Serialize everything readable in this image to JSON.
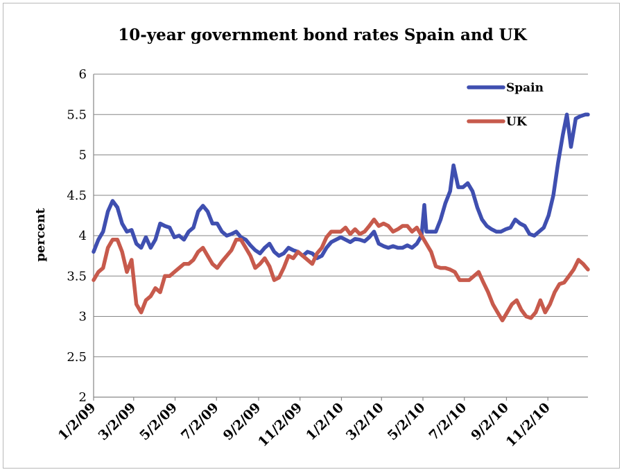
{
  "chart_data": {
    "type": "line",
    "title": "10-year government bond rates Spain and UK",
    "ylabel": "percent",
    "xlabel": "",
    "ylim": [
      2,
      6
    ],
    "yticks": [
      "2",
      "2.5",
      "3",
      "3.5",
      "4",
      "4.5",
      "5",
      "5.5",
      "6"
    ],
    "xticks": [
      "1/2/09",
      "3/2/09",
      "5/2/09",
      "7/2/09",
      "9/2/09",
      "11/2/09",
      "1/2/10",
      "3/2/10",
      "5/2/10",
      "7/2/10",
      "9/2/10",
      "11/2/10"
    ],
    "x_range": [
      "2009-01-02",
      "2010-12-31"
    ],
    "grid": "horizontal",
    "legend_position": "top-right",
    "series": [
      {
        "name": "Spain",
        "color": "#3f4fb0",
        "points": [
          [
            "2009-01-02",
            3.8
          ],
          [
            "2009-01-09",
            3.95
          ],
          [
            "2009-01-16",
            4.05
          ],
          [
            "2009-01-23",
            4.3
          ],
          [
            "2009-01-30",
            4.43
          ],
          [
            "2009-02-06",
            4.35
          ],
          [
            "2009-02-13",
            4.15
          ],
          [
            "2009-02-20",
            4.05
          ],
          [
            "2009-02-27",
            4.07
          ],
          [
            "2009-03-06",
            3.9
          ],
          [
            "2009-03-13",
            3.85
          ],
          [
            "2009-03-20",
            3.98
          ],
          [
            "2009-03-27",
            3.85
          ],
          [
            "2009-04-03",
            3.95
          ],
          [
            "2009-04-10",
            4.15
          ],
          [
            "2009-04-17",
            4.12
          ],
          [
            "2009-04-24",
            4.1
          ],
          [
            "2009-05-01",
            3.98
          ],
          [
            "2009-05-08",
            4.0
          ],
          [
            "2009-05-15",
            3.95
          ],
          [
            "2009-05-22",
            4.05
          ],
          [
            "2009-05-29",
            4.1
          ],
          [
            "2009-06-05",
            4.3
          ],
          [
            "2009-06-12",
            4.37
          ],
          [
            "2009-06-19",
            4.3
          ],
          [
            "2009-06-26",
            4.15
          ],
          [
            "2009-07-03",
            4.15
          ],
          [
            "2009-07-10",
            4.05
          ],
          [
            "2009-07-17",
            4.0
          ],
          [
            "2009-07-24",
            4.02
          ],
          [
            "2009-07-31",
            4.05
          ],
          [
            "2009-08-07",
            3.98
          ],
          [
            "2009-08-14",
            3.95
          ],
          [
            "2009-08-21",
            3.88
          ],
          [
            "2009-08-28",
            3.82
          ],
          [
            "2009-09-04",
            3.78
          ],
          [
            "2009-09-11",
            3.85
          ],
          [
            "2009-09-18",
            3.9
          ],
          [
            "2009-09-25",
            3.8
          ],
          [
            "2009-10-02",
            3.75
          ],
          [
            "2009-10-09",
            3.78
          ],
          [
            "2009-10-16",
            3.85
          ],
          [
            "2009-10-23",
            3.82
          ],
          [
            "2009-10-30",
            3.8
          ],
          [
            "2009-11-06",
            3.75
          ],
          [
            "2009-11-13",
            3.8
          ],
          [
            "2009-11-20",
            3.78
          ],
          [
            "2009-11-27",
            3.72
          ],
          [
            "2009-12-04",
            3.75
          ],
          [
            "2009-12-11",
            3.85
          ],
          [
            "2009-12-18",
            3.92
          ],
          [
            "2009-12-25",
            3.95
          ],
          [
            "2010-01-01",
            3.98
          ],
          [
            "2010-01-08",
            3.95
          ],
          [
            "2010-01-15",
            3.92
          ],
          [
            "2010-01-22",
            3.96
          ],
          [
            "2010-01-29",
            3.95
          ],
          [
            "2010-02-05",
            3.93
          ],
          [
            "2010-02-12",
            3.98
          ],
          [
            "2010-02-19",
            4.05
          ],
          [
            "2010-02-26",
            3.9
          ],
          [
            "2010-03-05",
            3.87
          ],
          [
            "2010-03-12",
            3.85
          ],
          [
            "2010-03-19",
            3.87
          ],
          [
            "2010-03-26",
            3.85
          ],
          [
            "2010-04-02",
            3.85
          ],
          [
            "2010-04-09",
            3.88
          ],
          [
            "2010-04-16",
            3.85
          ],
          [
            "2010-04-23",
            3.9
          ],
          [
            "2010-04-30",
            4.0
          ],
          [
            "2010-05-04",
            4.38
          ],
          [
            "2010-05-07",
            4.05
          ],
          [
            "2010-05-14",
            4.05
          ],
          [
            "2010-05-21",
            4.05
          ],
          [
            "2010-05-28",
            4.2
          ],
          [
            "2010-06-04",
            4.4
          ],
          [
            "2010-06-11",
            4.55
          ],
          [
            "2010-06-16",
            4.87
          ],
          [
            "2010-06-23",
            4.6
          ],
          [
            "2010-06-30",
            4.6
          ],
          [
            "2010-07-07",
            4.65
          ],
          [
            "2010-07-14",
            4.55
          ],
          [
            "2010-07-21",
            4.35
          ],
          [
            "2010-07-28",
            4.2
          ],
          [
            "2010-08-04",
            4.12
          ],
          [
            "2010-08-11",
            4.08
          ],
          [
            "2010-08-18",
            4.05
          ],
          [
            "2010-08-25",
            4.05
          ],
          [
            "2010-09-01",
            4.08
          ],
          [
            "2010-09-08",
            4.1
          ],
          [
            "2010-09-15",
            4.2
          ],
          [
            "2010-09-22",
            4.15
          ],
          [
            "2010-09-29",
            4.12
          ],
          [
            "2010-10-06",
            4.02
          ],
          [
            "2010-10-13",
            4.0
          ],
          [
            "2010-10-20",
            4.05
          ],
          [
            "2010-10-27",
            4.1
          ],
          [
            "2010-11-03",
            4.25
          ],
          [
            "2010-11-10",
            4.5
          ],
          [
            "2010-11-17",
            4.9
          ],
          [
            "2010-11-24",
            5.25
          ],
          [
            "2010-11-30",
            5.5
          ],
          [
            "2010-12-06",
            5.1
          ],
          [
            "2010-12-13",
            5.45
          ],
          [
            "2010-12-20",
            5.48
          ],
          [
            "2010-12-27",
            5.5
          ],
          [
            "2010-12-31",
            5.5
          ]
        ]
      },
      {
        "name": "UK",
        "color": "#c75a4c",
        "points": [
          [
            "2009-01-02",
            3.45
          ],
          [
            "2009-01-09",
            3.55
          ],
          [
            "2009-01-16",
            3.6
          ],
          [
            "2009-01-23",
            3.85
          ],
          [
            "2009-01-30",
            3.95
          ],
          [
            "2009-02-06",
            3.95
          ],
          [
            "2009-02-13",
            3.8
          ],
          [
            "2009-02-20",
            3.55
          ],
          [
            "2009-02-27",
            3.7
          ],
          [
            "2009-03-06",
            3.15
          ],
          [
            "2009-03-13",
            3.05
          ],
          [
            "2009-03-20",
            3.2
          ],
          [
            "2009-03-27",
            3.25
          ],
          [
            "2009-04-03",
            3.35
          ],
          [
            "2009-04-10",
            3.3
          ],
          [
            "2009-04-17",
            3.5
          ],
          [
            "2009-04-24",
            3.5
          ],
          [
            "2009-05-01",
            3.55
          ],
          [
            "2009-05-08",
            3.6
          ],
          [
            "2009-05-15",
            3.65
          ],
          [
            "2009-05-22",
            3.65
          ],
          [
            "2009-05-29",
            3.7
          ],
          [
            "2009-06-05",
            3.8
          ],
          [
            "2009-06-12",
            3.85
          ],
          [
            "2009-06-19",
            3.75
          ],
          [
            "2009-06-26",
            3.65
          ],
          [
            "2009-07-03",
            3.6
          ],
          [
            "2009-07-10",
            3.68
          ],
          [
            "2009-07-17",
            3.75
          ],
          [
            "2009-07-24",
            3.82
          ],
          [
            "2009-07-31",
            3.95
          ],
          [
            "2009-08-07",
            3.95
          ],
          [
            "2009-08-14",
            3.85
          ],
          [
            "2009-08-21",
            3.75
          ],
          [
            "2009-08-28",
            3.6
          ],
          [
            "2009-09-04",
            3.65
          ],
          [
            "2009-09-11",
            3.72
          ],
          [
            "2009-09-18",
            3.62
          ],
          [
            "2009-09-25",
            3.45
          ],
          [
            "2009-10-02",
            3.48
          ],
          [
            "2009-10-09",
            3.6
          ],
          [
            "2009-10-16",
            3.75
          ],
          [
            "2009-10-23",
            3.72
          ],
          [
            "2009-10-30",
            3.8
          ],
          [
            "2009-11-06",
            3.75
          ],
          [
            "2009-11-13",
            3.7
          ],
          [
            "2009-11-20",
            3.65
          ],
          [
            "2009-11-27",
            3.78
          ],
          [
            "2009-12-04",
            3.85
          ],
          [
            "2009-12-11",
            3.98
          ],
          [
            "2009-12-18",
            4.05
          ],
          [
            "2009-12-25",
            4.05
          ],
          [
            "2010-01-01",
            4.05
          ],
          [
            "2010-01-08",
            4.1
          ],
          [
            "2010-01-15",
            4.02
          ],
          [
            "2010-01-22",
            4.08
          ],
          [
            "2010-01-29",
            4.02
          ],
          [
            "2010-02-05",
            4.05
          ],
          [
            "2010-02-12",
            4.12
          ],
          [
            "2010-02-19",
            4.2
          ],
          [
            "2010-02-26",
            4.12
          ],
          [
            "2010-03-05",
            4.15
          ],
          [
            "2010-03-12",
            4.12
          ],
          [
            "2010-03-19",
            4.05
          ],
          [
            "2010-03-26",
            4.08
          ],
          [
            "2010-04-02",
            4.12
          ],
          [
            "2010-04-09",
            4.12
          ],
          [
            "2010-04-16",
            4.05
          ],
          [
            "2010-04-23",
            4.1
          ],
          [
            "2010-04-30",
            4.0
          ],
          [
            "2010-05-07",
            3.9
          ],
          [
            "2010-05-14",
            3.8
          ],
          [
            "2010-05-21",
            3.62
          ],
          [
            "2010-05-28",
            3.6
          ],
          [
            "2010-06-04",
            3.6
          ],
          [
            "2010-06-11",
            3.58
          ],
          [
            "2010-06-18",
            3.55
          ],
          [
            "2010-06-25",
            3.45
          ],
          [
            "2010-07-02",
            3.45
          ],
          [
            "2010-07-09",
            3.45
          ],
          [
            "2010-07-16",
            3.5
          ],
          [
            "2010-07-23",
            3.55
          ],
          [
            "2010-07-30",
            3.42
          ],
          [
            "2010-08-06",
            3.3
          ],
          [
            "2010-08-13",
            3.15
          ],
          [
            "2010-08-20",
            3.05
          ],
          [
            "2010-08-27",
            2.95
          ],
          [
            "2010-09-03",
            3.05
          ],
          [
            "2010-09-10",
            3.15
          ],
          [
            "2010-09-17",
            3.2
          ],
          [
            "2010-09-24",
            3.08
          ],
          [
            "2010-10-01",
            3.0
          ],
          [
            "2010-10-08",
            2.98
          ],
          [
            "2010-10-15",
            3.05
          ],
          [
            "2010-10-22",
            3.2
          ],
          [
            "2010-10-29",
            3.05
          ],
          [
            "2010-11-05",
            3.15
          ],
          [
            "2010-11-12",
            3.3
          ],
          [
            "2010-11-19",
            3.4
          ],
          [
            "2010-11-26",
            3.42
          ],
          [
            "2010-12-03",
            3.5
          ],
          [
            "2010-12-10",
            3.58
          ],
          [
            "2010-12-17",
            3.7
          ],
          [
            "2010-12-24",
            3.65
          ],
          [
            "2010-12-31",
            3.58
          ]
        ]
      }
    ]
  }
}
